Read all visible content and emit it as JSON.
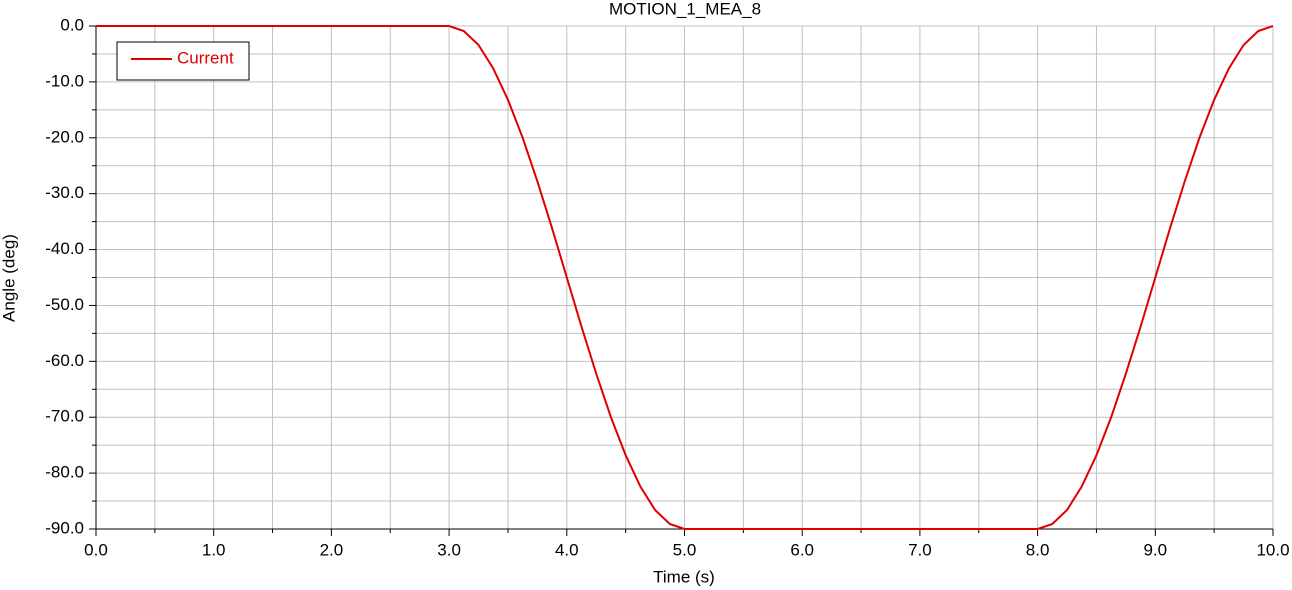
{
  "chart_data": {
    "type": "line",
    "title": "MOTION_1_MEA_8",
    "x_label": "Time (s)",
    "y_label": "Angle (deg)",
    "x": [
      0,
      3,
      3.125,
      3.25,
      3.375,
      3.5,
      3.625,
      3.75,
      3.875,
      4,
      4.125,
      4.25,
      4.375,
      4.5,
      4.625,
      4.75,
      4.875,
      5,
      8,
      8.125,
      8.25,
      8.375,
      8.5,
      8.625,
      8.75,
      8.875,
      9,
      9.125,
      9.25,
      9.375,
      9.5,
      9.625,
      9.75,
      9.875,
      10
    ],
    "series": [
      {
        "name": "Current",
        "color": "#e00000",
        "values": [
          0,
          0,
          -0.9,
          -3.4,
          -7.6,
          -13.2,
          -20.0,
          -27.8,
          -36.2,
          -45,
          -53.8,
          -62.2,
          -70.0,
          -76.8,
          -82.4,
          -86.6,
          -89.1,
          -90,
          -90,
          -89.1,
          -86.6,
          -82.4,
          -76.8,
          -70.0,
          -62.2,
          -53.8,
          -45,
          -36.2,
          -27.8,
          -20.0,
          -13.2,
          -7.6,
          -3.4,
          -0.9,
          0
        ]
      }
    ],
    "xlim": [
      0,
      10
    ],
    "ylim": [
      -90,
      0
    ],
    "xticks": [
      {
        "value": 0,
        "label": "0.0"
      },
      {
        "value": 1,
        "label": "1.0"
      },
      {
        "value": 2,
        "label": "2.0"
      },
      {
        "value": 3,
        "label": "3.0"
      },
      {
        "value": 4,
        "label": "4.0"
      },
      {
        "value": 5,
        "label": "5.0"
      },
      {
        "value": 6,
        "label": "6.0"
      },
      {
        "value": 7,
        "label": "7.0"
      },
      {
        "value": 8,
        "label": "8.0"
      },
      {
        "value": 9,
        "label": "9.0"
      },
      {
        "value": 10,
        "label": "10.0"
      }
    ],
    "yticks": [
      {
        "value": 0,
        "label": "0.0"
      },
      {
        "value": -10,
        "label": "-10.0"
      },
      {
        "value": -20,
        "label": "-20.0"
      },
      {
        "value": -30,
        "label": "-30.0"
      },
      {
        "value": -40,
        "label": "-40.0"
      },
      {
        "value": -50,
        "label": "-50.0"
      },
      {
        "value": -60,
        "label": "-60.0"
      },
      {
        "value": -70,
        "label": "-70.0"
      },
      {
        "value": -80,
        "label": "-80.0"
      },
      {
        "value": -90,
        "label": "-90.0"
      }
    ],
    "xminorticks": [
      0.5,
      1.5,
      2.5,
      3.5,
      4.5,
      5.5,
      6.5,
      7.5,
      8.5,
      9.5
    ],
    "yminorticks": [
      -5,
      -15,
      -25,
      -35,
      -45,
      -55,
      -65,
      -75,
      -85
    ],
    "grid": true,
    "legend": "upper left"
  }
}
